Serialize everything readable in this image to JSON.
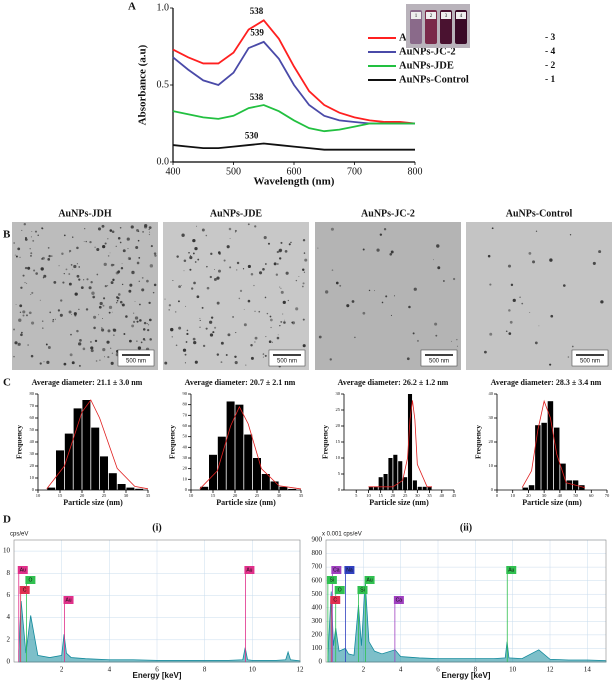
{
  "panel_labels": [
    "A",
    "B",
    "C",
    "D"
  ],
  "micrographs": [
    {
      "title": "AuNPs-JDH",
      "scale_bar": "500 nm"
    },
    {
      "title": "AuNPs-JDE",
      "scale_bar": "500 nm"
    },
    {
      "title": "AuNPs-JC-2",
      "scale_bar": "500 nm"
    },
    {
      "title": "AuNPs-Control",
      "scale_bar": "500 nm"
    }
  ],
  "chart_data": [
    {
      "type": "line",
      "xlabel": "Wavelength (nm)",
      "ylabel": "Absorbance (a.u)",
      "x": [
        400,
        425,
        450,
        475,
        500,
        525,
        550,
        575,
        600,
        625,
        650,
        675,
        700,
        725,
        750,
        775,
        800
      ],
      "series": [
        {
          "name": "AuNPs-JDH",
          "tag": "- 3",
          "color": "#ff2020",
          "values": [
            0.73,
            0.68,
            0.64,
            0.64,
            0.71,
            0.86,
            0.92,
            0.8,
            0.62,
            0.46,
            0.37,
            0.32,
            0.29,
            0.27,
            0.26,
            0.26,
            0.25
          ]
        },
        {
          "name": "AuNPs-JC-2",
          "tag": "- 4",
          "color": "#4a4aa8",
          "values": [
            0.68,
            0.6,
            0.53,
            0.5,
            0.58,
            0.74,
            0.78,
            0.67,
            0.5,
            0.37,
            0.3,
            0.27,
            0.26,
            0.25,
            0.25,
            0.25,
            0.25
          ]
        },
        {
          "name": "AuNPs-JDE",
          "tag": "- 2",
          "color": "#22c040",
          "values": [
            0.33,
            0.31,
            0.29,
            0.28,
            0.3,
            0.35,
            0.37,
            0.33,
            0.27,
            0.22,
            0.2,
            0.21,
            0.23,
            0.25,
            0.25,
            0.25,
            0.25
          ]
        },
        {
          "name": "AuNPs-Control",
          "tag": "- 1",
          "color": "#111111",
          "values": [
            0.11,
            0.1,
            0.09,
            0.09,
            0.1,
            0.11,
            0.12,
            0.11,
            0.1,
            0.09,
            0.08,
            0.08,
            0.08,
            0.08,
            0.08,
            0.08,
            0.08
          ]
        }
      ],
      "annotations": [
        {
          "text": "538",
          "x": 538,
          "y": 0.93
        },
        {
          "text": "539",
          "x": 539,
          "y": 0.79
        },
        {
          "text": "538",
          "x": 538,
          "y": 0.37
        },
        {
          "text": "530",
          "x": 530,
          "y": 0.12
        }
      ],
      "inset": [
        "1",
        "2",
        "3",
        "4"
      ],
      "xlim": [
        400,
        800
      ],
      "xticks": [
        400,
        500,
        600,
        700,
        800
      ],
      "ylim": [
        0,
        1.0
      ],
      "yticks": [
        {
          "value": 0,
          "label": "0.0"
        },
        {
          "value": 0.5,
          "label": "0.5"
        },
        {
          "value": 1.0,
          "label": "1.0"
        }
      ]
    },
    {
      "type": "histogram",
      "title": "Average diameter: 21.1 ± 3.0 nm",
      "xlabel": "Particle size (nm)",
      "ylabel": "Frequency",
      "bins": [
        12,
        14,
        16,
        18,
        20,
        22,
        24,
        26,
        28,
        30,
        32,
        34
      ],
      "counts": [
        2,
        33,
        47,
        68,
        75,
        52,
        28,
        14,
        5,
        2,
        1
      ],
      "fit_x": [
        12,
        16,
        20,
        22,
        24,
        28,
        32,
        35
      ],
      "fit": [
        1,
        20,
        65,
        75,
        60,
        18,
        3,
        1
      ],
      "color": "#000000",
      "fit_color": "#e02020",
      "xlim": [
        10,
        35
      ],
      "xticks": [
        10,
        15,
        20,
        25,
        30,
        35
      ],
      "ylim": [
        0,
        80
      ],
      "yticks": [
        0,
        10,
        20,
        30,
        40,
        50,
        60,
        70,
        80
      ]
    },
    {
      "type": "histogram",
      "title": "Average diameter: 20.7 ± 2.1 nm",
      "xlabel": "Particle size (nm)",
      "ylabel": "Frequency",
      "bins": [
        12,
        14,
        16,
        18,
        20,
        22,
        24,
        26,
        28,
        30,
        32,
        34
      ],
      "counts": [
        3,
        33,
        50,
        83,
        80,
        52,
        30,
        15,
        8,
        3,
        1
      ],
      "fit_x": [
        12,
        16,
        19,
        21,
        23,
        26,
        30,
        35
      ],
      "fit": [
        1,
        18,
        60,
        78,
        62,
        20,
        4,
        1
      ],
      "color": "#000000",
      "fit_color": "#e02020",
      "xlim": [
        10,
        35
      ],
      "xticks": [
        10,
        15,
        20,
        25,
        30,
        35
      ],
      "ylim": [
        0,
        90
      ],
      "yticks": [
        0,
        10,
        20,
        30,
        40,
        50,
        60,
        70,
        80,
        90
      ]
    },
    {
      "type": "histogram",
      "title": "Average diameter: 26.2 ± 1.2 nm",
      "xlabel": "Particle size (nm)",
      "ylabel": "Frequency",
      "bins": [
        10,
        12,
        14,
        16,
        18,
        20,
        22,
        24,
        26,
        28,
        30,
        32,
        34,
        36
      ],
      "counts": [
        1,
        1,
        4,
        5,
        10,
        11,
        9,
        4,
        30,
        3,
        1,
        1,
        1
      ],
      "fit_x": [
        10,
        20,
        24,
        26,
        27,
        28,
        29,
        30,
        34,
        36
      ],
      "fit": [
        1,
        1,
        3,
        10,
        22,
        28,
        22,
        8,
        1,
        1
      ],
      "color": "#000000",
      "fit_color": "#e02020",
      "xlim": [
        0,
        45
      ],
      "xticks": [
        5,
        10,
        15,
        20,
        25,
        30,
        35,
        40,
        45
      ],
      "ylim": [
        0,
        30
      ],
      "yticks": [
        0,
        5,
        10,
        15,
        20,
        25,
        30
      ]
    },
    {
      "type": "histogram",
      "title": "Average diameter: 28.3 ± 3.4 nm",
      "xlabel": "Particle size (nm)",
      "ylabel": "Frequency",
      "bins": [
        16,
        20,
        24,
        28,
        32,
        36,
        40,
        44,
        48,
        52,
        56
      ],
      "counts": [
        1,
        2,
        27,
        28,
        37,
        26,
        11,
        4,
        4,
        2
      ],
      "fit_x": [
        16,
        22,
        26,
        30,
        34,
        38,
        44,
        56
      ],
      "fit": [
        1,
        8,
        25,
        37,
        30,
        15,
        3,
        1
      ],
      "color": "#000000",
      "fit_color": "#e02020",
      "xlim": [
        0,
        70
      ],
      "xticks": [
        0,
        10,
        20,
        30,
        40,
        50,
        60,
        70
      ],
      "ylim": [
        0,
        40
      ],
      "yticks": [
        0,
        10,
        20,
        30,
        40
      ]
    },
    {
      "type": "spectrum",
      "title": "(i)",
      "unit": "cps/eV",
      "xlabel": "Energy [keV]",
      "color": "#138a9c",
      "grid": true,
      "x": [
        0.2,
        0.3,
        0.5,
        0.7,
        1,
        1.5,
        2.0,
        2.1,
        2.2,
        2.4,
        3,
        4,
        5,
        6,
        7,
        8,
        9,
        9.6,
        9.7,
        9.8,
        10,
        11,
        11.4,
        11.5,
        11.6,
        12
      ],
      "values": [
        1,
        5.5,
        0.8,
        4.2,
        0.6,
        0.4,
        0.6,
        2.5,
        0.8,
        0.4,
        0.3,
        0.2,
        0.2,
        0.15,
        0.15,
        0.15,
        0.15,
        0.2,
        1.3,
        0.2,
        0.15,
        0.15,
        0.2,
        0.9,
        0.2,
        0.1
      ],
      "markers": [
        {
          "label": "Au",
          "x": 0.2,
          "color": "#e0308a"
        },
        {
          "label": "O",
          "x": 0.52,
          "color": "#30c050"
        },
        {
          "label": "C",
          "x": 0.28,
          "color": "#e03050"
        },
        {
          "label": "Au",
          "x": 2.12,
          "color": "#e0308a"
        },
        {
          "label": "Au",
          "x": 9.71,
          "color": "#e0308a"
        }
      ],
      "xlim": [
        0,
        12
      ],
      "xticks": [
        2,
        4,
        6,
        8,
        10,
        12
      ],
      "ylim": [
        0,
        11
      ],
      "yticks": [
        0,
        2,
        4,
        6,
        8,
        10
      ]
    },
    {
      "type": "spectrum",
      "title": "(ii)",
      "unit": "x 0.001 cps/eV",
      "xlabel": "Energy [keV]",
      "color": "#138a9c",
      "grid": true,
      "x": [
        0.1,
        0.28,
        0.4,
        0.52,
        0.7,
        1.04,
        1.2,
        1.5,
        1.74,
        1.9,
        2.1,
        2.3,
        2.6,
        3,
        3.7,
        4,
        5,
        6,
        7,
        8,
        9,
        9.6,
        9.7,
        9.8,
        10.5,
        11.4,
        12,
        13,
        14,
        15
      ],
      "values": [
        40,
        520,
        120,
        250,
        80,
        100,
        60,
        50,
        420,
        120,
        590,
        150,
        80,
        60,
        90,
        40,
        30,
        25,
        25,
        25,
        25,
        30,
        150,
        30,
        25,
        90,
        20,
        15,
        15,
        10
      ],
      "markers": [
        {
          "label": "Ca",
          "x": 0.34,
          "color": "#a040c0"
        },
        {
          "label": "Si",
          "x": 0.1,
          "color": "#30c050"
        },
        {
          "label": "O",
          "x": 0.52,
          "color": "#30c050"
        },
        {
          "label": "C",
          "x": 0.28,
          "color": "#e03050"
        },
        {
          "label": "Na",
          "x": 1.04,
          "color": "#3040c0"
        },
        {
          "label": "Au",
          "x": 2.12,
          "color": "#30c050"
        },
        {
          "label": "Si",
          "x": 1.74,
          "color": "#30c050"
        },
        {
          "label": "Ca",
          "x": 3.69,
          "color": "#a040c0"
        },
        {
          "label": "Au",
          "x": 9.71,
          "color": "#30c050"
        }
      ],
      "xlim": [
        0,
        15
      ],
      "xticks": [
        2,
        4,
        6,
        8,
        10,
        12,
        14
      ],
      "ylim": [
        0,
        900
      ],
      "yticks": [
        0,
        100,
        200,
        300,
        400,
        500,
        600,
        700,
        800,
        900
      ]
    }
  ]
}
